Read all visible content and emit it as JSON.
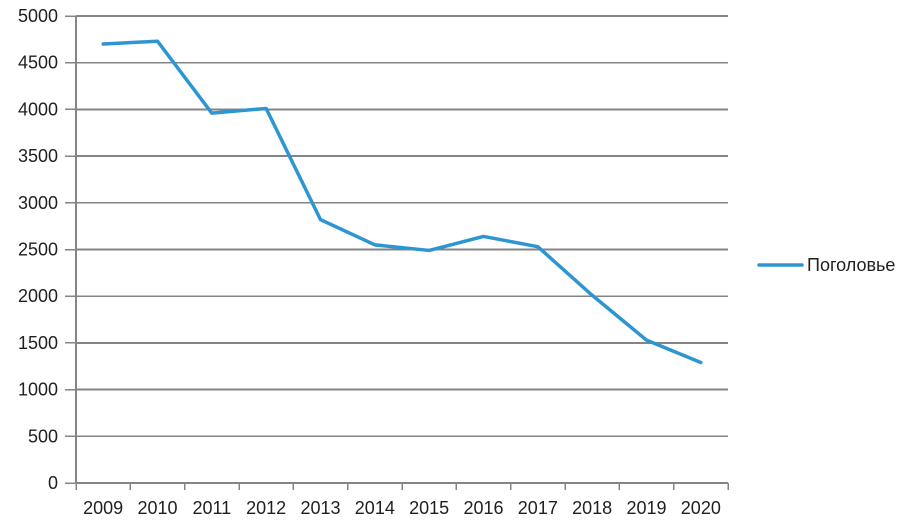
{
  "chart_data": {
    "type": "line",
    "title": "",
    "xlabel": "",
    "ylabel": "",
    "categories": [
      "2009",
      "2010",
      "2011",
      "2012",
      "2013",
      "2014",
      "2015",
      "2016",
      "2017",
      "2018",
      "2019",
      "2020"
    ],
    "series": [
      {
        "name": "Поголовье",
        "color": "#2D96D2",
        "values": [
          4700,
          4730,
          3960,
          4010,
          2820,
          2550,
          2490,
          2640,
          2530,
          2010,
          1530,
          1290
        ]
      }
    ],
    "ylim": [
      0,
      5000
    ],
    "ytick_step": 500,
    "yticks": [
      0,
      500,
      1000,
      1500,
      2000,
      2500,
      3000,
      3500,
      4000,
      4500,
      5000
    ],
    "grid": "horizontal",
    "legend_position": "right-middle",
    "colors": {
      "gridline": "#848484",
      "axis": "#848484",
      "tick_text": "#1f1f1f",
      "background": "#ffffff"
    }
  }
}
